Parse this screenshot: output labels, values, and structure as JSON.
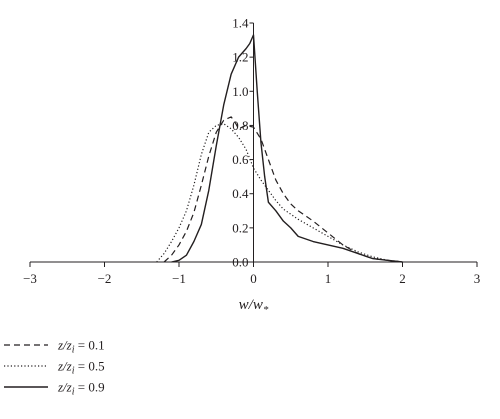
{
  "chart_data": {
    "type": "line",
    "title": "",
    "xlabel": "w/w",
    "xlabel_sub": "*",
    "ylabel": "",
    "xlim": [
      -3,
      3
    ],
    "ylim": [
      0,
      1.4
    ],
    "xticks": [
      "−3",
      "−2",
      "−1",
      "0",
      "1",
      "2",
      "3"
    ],
    "yticks": [
      "0.0",
      "0.2",
      "0.4",
      "0.6",
      "0.8",
      "1.0",
      "1.2",
      "1.4"
    ],
    "grid": false,
    "legend_position": "bottom-left",
    "series": [
      {
        "name": "z/z_i = 0.1",
        "legend_var": "z/z",
        "legend_sub": "i",
        "legend_value": " = 0.1",
        "style": "dashed",
        "x": [
          -1.2,
          -1.1,
          -1.0,
          -0.9,
          -0.8,
          -0.7,
          -0.6,
          -0.5,
          -0.4,
          -0.3,
          -0.25,
          -0.2,
          -0.1,
          0.0,
          0.1,
          0.2,
          0.3,
          0.4,
          0.5,
          0.6,
          0.8,
          1.0,
          1.2,
          1.4,
          1.6,
          1.8,
          2.0
        ],
        "y": [
          0.0,
          0.04,
          0.1,
          0.18,
          0.29,
          0.45,
          0.62,
          0.76,
          0.83,
          0.85,
          0.82,
          0.78,
          0.8,
          0.79,
          0.72,
          0.6,
          0.48,
          0.4,
          0.34,
          0.3,
          0.24,
          0.17,
          0.1,
          0.05,
          0.02,
          0.01,
          0.0
        ]
      },
      {
        "name": "z/z_i = 0.5",
        "legend_var": "z/z",
        "legend_sub": "i",
        "legend_value": " = 0.5",
        "style": "dotted",
        "x": [
          -1.3,
          -1.2,
          -1.1,
          -1.0,
          -0.9,
          -0.8,
          -0.7,
          -0.6,
          -0.5,
          -0.4,
          -0.3,
          -0.2,
          -0.1,
          0.0,
          0.1,
          0.2,
          0.3,
          0.4,
          0.5,
          0.6,
          0.8,
          1.0,
          1.2,
          1.4,
          1.6,
          1.8,
          2.0
        ],
        "y": [
          0.0,
          0.05,
          0.12,
          0.2,
          0.3,
          0.45,
          0.63,
          0.76,
          0.8,
          0.81,
          0.78,
          0.73,
          0.66,
          0.55,
          0.48,
          0.42,
          0.36,
          0.31,
          0.28,
          0.25,
          0.2,
          0.15,
          0.1,
          0.06,
          0.03,
          0.01,
          0.0
        ]
      },
      {
        "name": "z/z_i = 0.9",
        "legend_var": "z/z",
        "legend_sub": "i",
        "legend_value": " = 0.9",
        "style": "solid",
        "x": [
          -1.1,
          -1.0,
          -0.9,
          -0.8,
          -0.7,
          -0.6,
          -0.5,
          -0.4,
          -0.3,
          -0.2,
          -0.1,
          -0.05,
          0.0,
          0.05,
          0.1,
          0.15,
          0.2,
          0.3,
          0.4,
          0.5,
          0.6,
          0.8,
          1.0,
          1.2,
          1.4,
          1.6,
          1.8,
          2.0
        ],
        "y": [
          0.0,
          0.01,
          0.04,
          0.12,
          0.22,
          0.42,
          0.68,
          0.92,
          1.1,
          1.2,
          1.25,
          1.28,
          1.33,
          1.0,
          0.7,
          0.5,
          0.35,
          0.3,
          0.24,
          0.2,
          0.15,
          0.12,
          0.1,
          0.08,
          0.05,
          0.02,
          0.01,
          0.0
        ]
      }
    ]
  }
}
